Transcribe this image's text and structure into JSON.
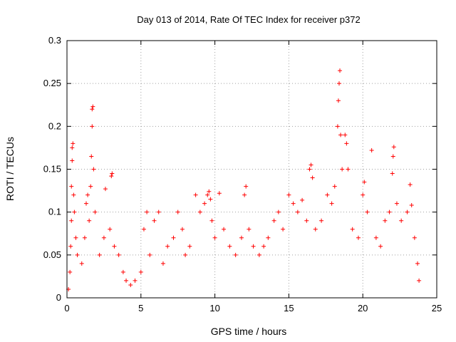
{
  "chart_data": {
    "type": "scatter",
    "title": "Day 013 of 2014, Rate Of TEC Index for receiver p372",
    "xlabel": "GPS time / hours",
    "ylabel": "ROTI / TECUs",
    "xlim": [
      0,
      25
    ],
    "ylim": [
      0,
      0.3
    ],
    "xticks": [
      0,
      5,
      10,
      15,
      20,
      25
    ],
    "yticks": [
      0,
      0.05,
      0.1,
      0.15,
      0.2,
      0.25,
      0.3
    ],
    "xtick_labels": [
      "0",
      "5",
      "10",
      "15",
      "20",
      "25"
    ],
    "ytick_labels": [
      "0",
      "0.05",
      "0.1",
      "0.15",
      "0.2",
      "0.25",
      "0.3"
    ],
    "grid": true,
    "marker": "+",
    "color": "#ff0000",
    "series": [
      {
        "name": "ROTI",
        "points": [
          [
            0.1,
            0.01
          ],
          [
            0.2,
            0.03
          ],
          [
            0.25,
            0.06
          ],
          [
            0.3,
            0.09
          ],
          [
            0.3,
            0.13
          ],
          [
            0.35,
            0.16
          ],
          [
            0.35,
            0.175
          ],
          [
            0.4,
            0.18
          ],
          [
            0.45,
            0.12
          ],
          [
            0.5,
            0.1
          ],
          [
            0.6,
            0.07
          ],
          [
            0.7,
            0.05
          ],
          [
            1.0,
            0.04
          ],
          [
            1.2,
            0.07
          ],
          [
            1.3,
            0.11
          ],
          [
            1.4,
            0.12
          ],
          [
            1.5,
            0.09
          ],
          [
            1.6,
            0.13
          ],
          [
            1.65,
            0.165
          ],
          [
            1.7,
            0.2
          ],
          [
            1.7,
            0.22
          ],
          [
            1.75,
            0.223
          ],
          [
            1.8,
            0.15
          ],
          [
            1.9,
            0.1
          ],
          [
            2.2,
            0.05
          ],
          [
            2.5,
            0.07
          ],
          [
            2.6,
            0.127
          ],
          [
            2.9,
            0.08
          ],
          [
            3.0,
            0.142
          ],
          [
            3.05,
            0.145
          ],
          [
            3.2,
            0.06
          ],
          [
            3.5,
            0.05
          ],
          [
            3.8,
            0.03
          ],
          [
            4.0,
            0.02
          ],
          [
            4.3,
            0.015
          ],
          [
            4.6,
            0.02
          ],
          [
            5.0,
            0.03
          ],
          [
            5.2,
            0.08
          ],
          [
            5.4,
            0.1
          ],
          [
            5.6,
            0.05
          ],
          [
            5.9,
            0.09
          ],
          [
            6.2,
            0.1
          ],
          [
            6.5,
            0.04
          ],
          [
            6.8,
            0.06
          ],
          [
            7.2,
            0.07
          ],
          [
            7.5,
            0.1
          ],
          [
            7.8,
            0.08
          ],
          [
            8.0,
            0.05
          ],
          [
            8.3,
            0.06
          ],
          [
            8.7,
            0.12
          ],
          [
            9.0,
            0.1
          ],
          [
            9.3,
            0.11
          ],
          [
            9.5,
            0.12
          ],
          [
            9.6,
            0.124
          ],
          [
            9.7,
            0.115
          ],
          [
            9.8,
            0.09
          ],
          [
            10.0,
            0.07
          ],
          [
            10.3,
            0.122
          ],
          [
            10.6,
            0.08
          ],
          [
            11.0,
            0.06
          ],
          [
            11.4,
            0.05
          ],
          [
            11.8,
            0.07
          ],
          [
            12.0,
            0.12
          ],
          [
            12.1,
            0.13
          ],
          [
            12.3,
            0.08
          ],
          [
            12.6,
            0.06
          ],
          [
            13.0,
            0.05
          ],
          [
            13.3,
            0.06
          ],
          [
            13.6,
            0.07
          ],
          [
            14.0,
            0.09
          ],
          [
            14.3,
            0.1
          ],
          [
            14.6,
            0.08
          ],
          [
            15.0,
            0.12
          ],
          [
            15.3,
            0.11
          ],
          [
            15.6,
            0.1
          ],
          [
            15.9,
            0.114
          ],
          [
            16.2,
            0.09
          ],
          [
            16.4,
            0.15
          ],
          [
            16.5,
            0.155
          ],
          [
            16.6,
            0.14
          ],
          [
            16.8,
            0.08
          ],
          [
            17.2,
            0.09
          ],
          [
            17.6,
            0.12
          ],
          [
            17.9,
            0.11
          ],
          [
            18.1,
            0.13
          ],
          [
            18.3,
            0.2
          ],
          [
            18.35,
            0.23
          ],
          [
            18.4,
            0.25
          ],
          [
            18.45,
            0.265
          ],
          [
            18.5,
            0.19
          ],
          [
            18.6,
            0.15
          ],
          [
            18.8,
            0.19
          ],
          [
            18.9,
            0.18
          ],
          [
            19.0,
            0.15
          ],
          [
            19.3,
            0.08
          ],
          [
            19.7,
            0.07
          ],
          [
            20.0,
            0.12
          ],
          [
            20.1,
            0.135
          ],
          [
            20.3,
            0.1
          ],
          [
            20.6,
            0.172
          ],
          [
            20.9,
            0.07
          ],
          [
            21.2,
            0.06
          ],
          [
            21.5,
            0.09
          ],
          [
            21.8,
            0.1
          ],
          [
            22.0,
            0.145
          ],
          [
            22.05,
            0.165
          ],
          [
            22.1,
            0.176
          ],
          [
            22.3,
            0.11
          ],
          [
            22.6,
            0.09
          ],
          [
            23.0,
            0.1
          ],
          [
            23.2,
            0.132
          ],
          [
            23.3,
            0.108
          ],
          [
            23.5,
            0.07
          ],
          [
            23.7,
            0.04
          ],
          [
            23.8,
            0.02
          ]
        ]
      }
    ]
  }
}
